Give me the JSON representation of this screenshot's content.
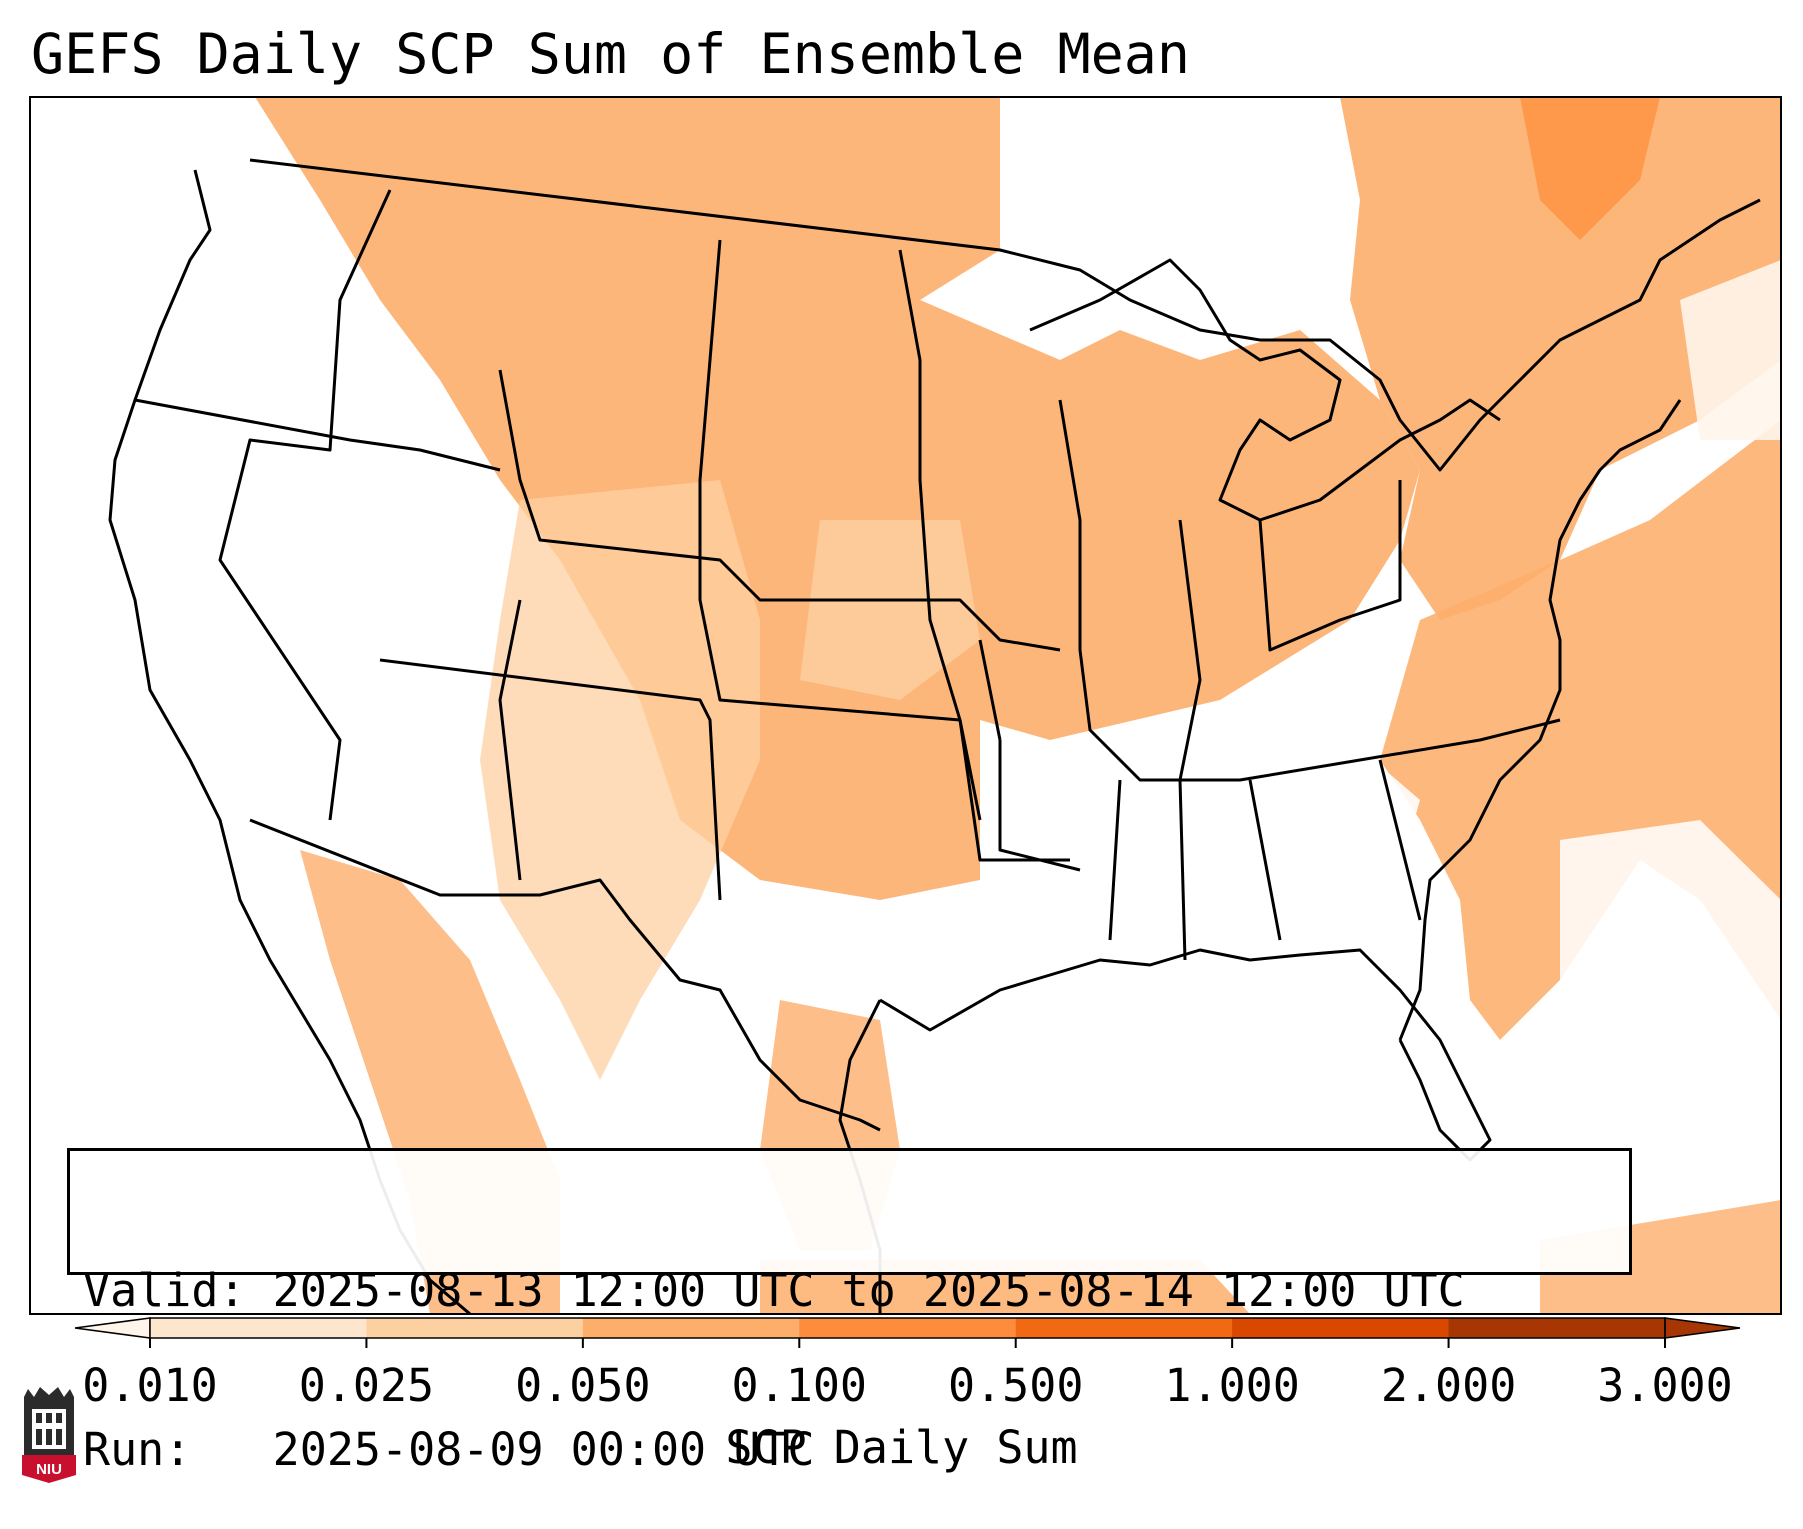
{
  "title": "GEFS Daily SCP Sum of Ensemble Mean",
  "info": {
    "valid_label": "Valid:",
    "valid_value": "2025-08-13 12:00 UTC to 2025-08-14 12:00 UTC",
    "run_label": "Run:",
    "run_value": "2025-08-09 00:00 UTC"
  },
  "colorbar": {
    "label": "SCP Daily Sum",
    "ticks": [
      "0.010",
      "0.025",
      "0.050",
      "0.100",
      "0.500",
      "1.000",
      "2.000",
      "3.000"
    ],
    "colors": [
      "#fff5eb",
      "#fee6ce",
      "#fdd0a2",
      "#fdae6b",
      "#fd8d3c",
      "#f16913",
      "#d94801",
      "#a63603"
    ],
    "extend": "both"
  },
  "logo": {
    "text": "NIU",
    "icon": "university-building-icon"
  }
}
